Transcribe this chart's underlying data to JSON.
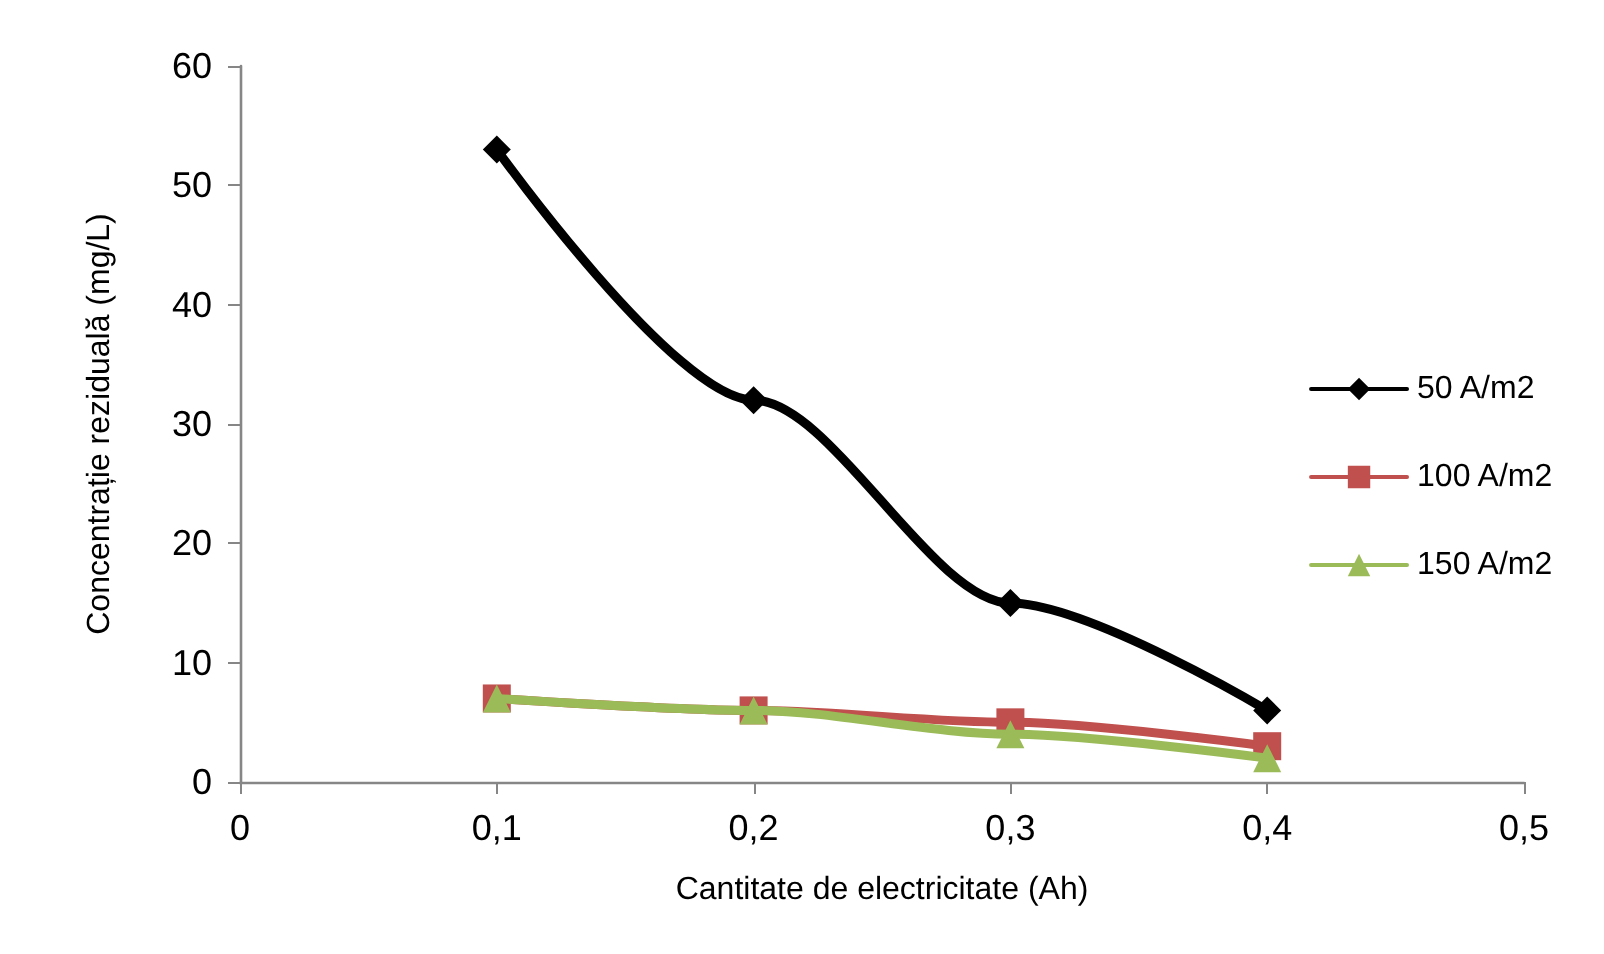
{
  "chart_data": {
    "type": "line",
    "xlabel": "Cantitate de electricitate (Ah)",
    "ylabel": "Concentrație reziduală (mg/L)",
    "x": [
      0.1,
      0.2,
      0.3,
      0.4
    ],
    "series": [
      {
        "name": "50 A/m2",
        "color": "#000000",
        "marker": "diamond",
        "values": [
          53,
          32,
          15,
          6
        ]
      },
      {
        "name": "100 A/m2",
        "color": "#c0504d",
        "marker": "square",
        "values": [
          7,
          6,
          5,
          3
        ]
      },
      {
        "name": "150 A/m2",
        "color": "#9bbb59",
        "marker": "triangle",
        "values": [
          7,
          6,
          4,
          2
        ]
      }
    ],
    "xlim": [
      0,
      0.5
    ],
    "xticks": [
      0,
      {
        "value": 0.1,
        "label": "0,1"
      },
      {
        "value": 0.2,
        "label": "0,2"
      },
      {
        "value": 0.3,
        "label": "0,3"
      },
      {
        "value": 0.4,
        "label": "0,4"
      },
      {
        "value": 0.5,
        "label": "0,5"
      }
    ],
    "ylim": [
      0,
      60
    ],
    "yticks": [
      0,
      10,
      20,
      30,
      40,
      50,
      60
    ],
    "grid": false,
    "legend": "right",
    "line_style": "solid"
  }
}
